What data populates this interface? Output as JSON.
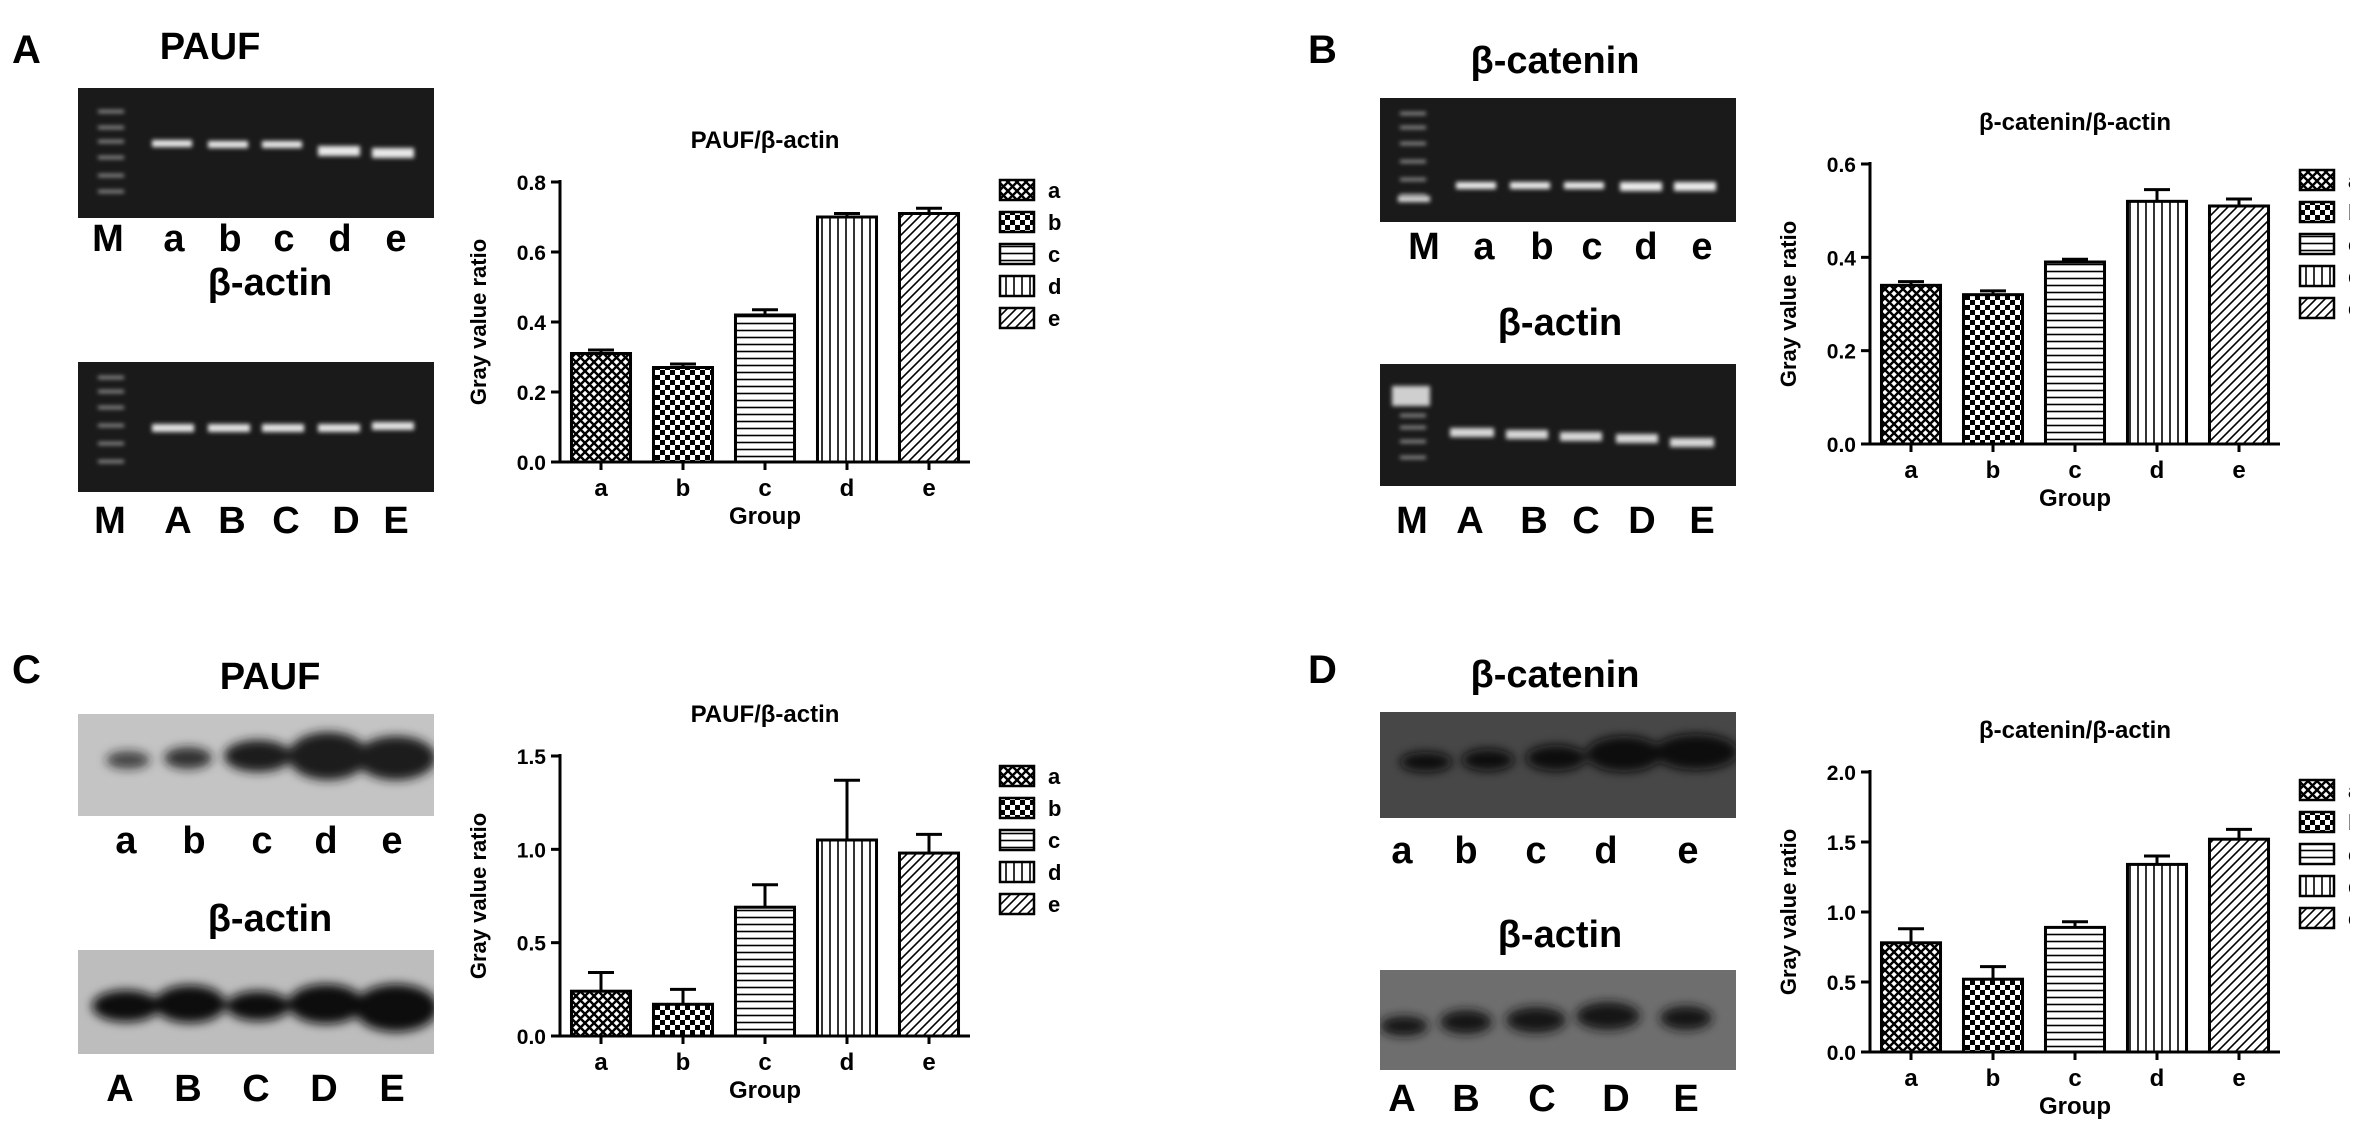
{
  "panels": [
    {
      "id": "A",
      "letter": "A",
      "kind": "gel",
      "top_title": "PAUF",
      "top_lanes": [
        "M",
        "a",
        "b",
        "c",
        "d",
        "e"
      ],
      "bottom_title": "β-actin",
      "bottom_lanes": [
        "M",
        "A",
        "B",
        "C",
        "D",
        "E"
      ]
    },
    {
      "id": "B",
      "letter": "B",
      "kind": "gel",
      "top_title": "β-catenin",
      "top_lanes": [
        "M",
        "a",
        "b",
        "c",
        "d",
        "e"
      ],
      "bottom_title": "β-actin",
      "bottom_lanes": [
        "M",
        "A",
        "B",
        "C",
        "D",
        "E"
      ]
    },
    {
      "id": "C",
      "letter": "C",
      "kind": "blot",
      "top_title": "PAUF",
      "top_lanes": [
        "a",
        "b",
        "c",
        "d",
        "e"
      ],
      "bottom_title": "β-actin",
      "bottom_lanes": [
        "A",
        "B",
        "C",
        "D",
        "E"
      ]
    },
    {
      "id": "D",
      "letter": "D",
      "kind": "blot",
      "top_title": "β-catenin",
      "top_lanes": [
        "a",
        "b",
        "c",
        "d",
        "e"
      ],
      "bottom_title": "β-actin",
      "bottom_lanes": [
        "A",
        "B",
        "C",
        "D",
        "E"
      ]
    }
  ],
  "patterns": [
    "crosshatch",
    "checker",
    "horizontal",
    "vertical",
    "diagonal"
  ],
  "chart_data": [
    {
      "type": "bar",
      "panel": "A",
      "title": "PAUF/β-actin",
      "xlabel": "Group",
      "ylabel": "Gray value ratio",
      "categories": [
        "a",
        "b",
        "c",
        "d",
        "e"
      ],
      "values": [
        0.31,
        0.27,
        0.42,
        0.7,
        0.71
      ],
      "errors": [
        0.01,
        0.01,
        0.015,
        0.01,
        0.015
      ],
      "ylim": [
        0,
        0.8
      ],
      "yticks": [
        "0.0",
        "0.2",
        "0.4",
        "0.6",
        "0.8"
      ],
      "legend": [
        "a",
        "b",
        "c",
        "d",
        "e"
      ],
      "legend_position": "right"
    },
    {
      "type": "bar",
      "panel": "B",
      "title": "β-catenin/β-actin",
      "xlabel": "Group",
      "ylabel": "Gray value ratio",
      "categories": [
        "a",
        "b",
        "c",
        "d",
        "e"
      ],
      "values": [
        0.34,
        0.32,
        0.39,
        0.52,
        0.51
      ],
      "errors": [
        0.008,
        0.008,
        0.006,
        0.025,
        0.015
      ],
      "ylim": [
        0,
        0.6
      ],
      "yticks": [
        "0.0",
        "0.2",
        "0.4",
        "0.6"
      ],
      "legend": [
        "a",
        "b",
        "c",
        "d",
        "e"
      ],
      "legend_position": "right"
    },
    {
      "type": "bar",
      "panel": "C",
      "title": "PAUF/β-actin",
      "xlabel": "Group",
      "ylabel": "Gray value ratio",
      "categories": [
        "a",
        "b",
        "c",
        "d",
        "e"
      ],
      "values": [
        0.24,
        0.17,
        0.69,
        1.05,
        0.98
      ],
      "errors": [
        0.1,
        0.08,
        0.12,
        0.32,
        0.1
      ],
      "ylim": [
        0,
        1.5
      ],
      "yticks": [
        "0.0",
        "0.5",
        "1.0",
        "1.5"
      ],
      "legend": [
        "a",
        "b",
        "c",
        "d",
        "e"
      ],
      "legend_position": "right"
    },
    {
      "type": "bar",
      "panel": "D",
      "title": "β-catenin/β-actin",
      "xlabel": "Group",
      "ylabel": "Gray value ratio",
      "categories": [
        "a",
        "b",
        "c",
        "d",
        "e"
      ],
      "values": [
        0.78,
        0.52,
        0.89,
        1.34,
        1.52
      ],
      "errors": [
        0.1,
        0.09,
        0.04,
        0.06,
        0.07
      ],
      "ylim": [
        0,
        2.0
      ],
      "yticks": [
        "0.0",
        "0.5",
        "1.0",
        "1.5",
        "2.0"
      ],
      "legend": [
        "a",
        "b",
        "c",
        "d",
        "e"
      ],
      "legend_position": "right"
    }
  ]
}
